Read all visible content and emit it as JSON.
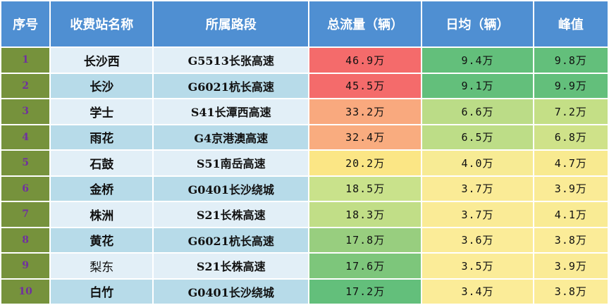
{
  "headers": {
    "index": "序号",
    "station": "收费站名称",
    "road": "所属路段",
    "total": "总流量（辆）",
    "daily": "日均（辆）",
    "peak": "峰值"
  },
  "colors": {
    "header_bg": "#4f8fd2",
    "index_bg": "#76923c",
    "index_text": "#7030a0",
    "light_row_bg": "#e2eff7",
    "dark_row_bg": "#b7dbe9"
  },
  "rows": [
    {
      "index": "1",
      "station": "长沙西",
      "road": "G5513长张高速",
      "total": "46.9万",
      "daily": "9.4万",
      "peak": "9.8万",
      "total_color": "#f46b6b",
      "daily_color": "#63bf7b",
      "peak_color": "#63bf7b"
    },
    {
      "index": "2",
      "station": "长沙",
      "road": "G6021杭长高速",
      "total": "45.5万",
      "daily": "9.1万",
      "peak": "9.9万",
      "total_color": "#f46b6b",
      "daily_color": "#63bf7b",
      "peak_color": "#63bf7b"
    },
    {
      "index": "3",
      "station": "学士",
      "road": "S41长潭西高速",
      "total": "33.2万",
      "daily": "6.6万",
      "peak": "7.2万",
      "total_color": "#f9a97e",
      "daily_color": "#bbdc87",
      "peak_color": "#c4df86"
    },
    {
      "index": "4",
      "station": "雨花",
      "road": "G4京港澳高速",
      "total": "32.4万",
      "daily": "6.5万",
      "peak": "6.8万",
      "total_color": "#f9ac7f",
      "daily_color": "#bddd87",
      "peak_color": "#cfe289"
    },
    {
      "index": "5",
      "station": "石鼓",
      "road": "S51南岳高速",
      "total": "20.2万",
      "daily": "4.0万",
      "peak": "4.7万",
      "total_color": "#fbe685",
      "daily_color": "#f7eb94",
      "peak_color": "#f8ea90"
    },
    {
      "index": "6",
      "station": "金桥",
      "road": "G0401长沙绕城",
      "total": "18.5万",
      "daily": "3.7万",
      "peak": "3.9万",
      "total_color": "#c9e28b",
      "daily_color": "#faeb96",
      "peak_color": "#faeb96"
    },
    {
      "index": "7",
      "station": "株洲",
      "road": "S21长株高速",
      "total": "18.3万",
      "daily": "3.7万",
      "peak": "4.1万",
      "total_color": "#c1de87",
      "daily_color": "#faeb96",
      "peak_color": "#f9eb94"
    },
    {
      "index": "8",
      "station": "黄花",
      "road": "G6021杭长高速",
      "total": "17.8万",
      "daily": "3.6万",
      "peak": "3.8万",
      "total_color": "#98ce7f",
      "daily_color": "#fbec98",
      "peak_color": "#fbec98"
    },
    {
      "index": "9",
      "station": "梨东",
      "road": "S21长株高速",
      "total": "17.6万",
      "daily": "3.5万",
      "peak": "3.9万",
      "total_color": "#7dc67b",
      "daily_color": "#fbec98",
      "peak_color": "#faeb96"
    },
    {
      "index": "10",
      "station": "白竹",
      "road": "G0401长沙绕城",
      "total": "17.2万",
      "daily": "3.4万",
      "peak": "3.8万",
      "total_color": "#63bf7b",
      "daily_color": "#fbec98",
      "peak_color": "#fbec98"
    }
  ]
}
